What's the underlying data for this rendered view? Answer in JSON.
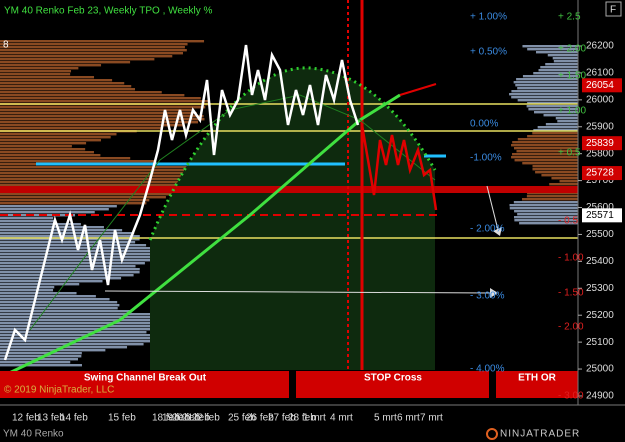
{
  "header": {
    "title": "YM 40 Renko Feb 23, Weekly TPO , Weekly %",
    "panel_number": "8",
    "button": "F"
  },
  "price_axis": [
    26200,
    26100,
    26000,
    25900,
    25800,
    25700,
    25600,
    25500,
    25400,
    25300,
    25200,
    25100,
    25000,
    24900
  ],
  "price_tags": [
    {
      "value": 26054,
      "style": "red"
    },
    {
      "value": 25839,
      "style": "red"
    },
    {
      "value": 25728,
      "style": "red"
    },
    {
      "value": 25571,
      "style": "white"
    }
  ],
  "percent_labels": [
    "+ 1.00%",
    "+ 0.50%",
    "0.00%",
    "-1.00%",
    "- 2.00%",
    "- 3.00%",
    "- 4.00%"
  ],
  "axis_percent_labels": [
    "+ 2.5",
    "+ 2.00",
    "+ 1.50",
    "+ 1.00",
    "+ 0.5",
    "- 0.5",
    "- 1.00",
    "- 1.50",
    "- 2.00",
    "- 3.00"
  ],
  "dates": [
    "12 feb",
    "13 feb",
    "14 feb",
    "15 feb",
    "18 feb",
    "19 feb",
    "20 feb",
    "21 feb",
    "22 feb",
    "25 feb",
    "26 feb",
    "27 feb",
    "28 feb",
    "1 mrt",
    "4 mrt",
    "5 mrt",
    "6 mrt",
    "7 mrt"
  ],
  "banners": [
    "Swing Channel Break Out",
    "STOP Cross",
    "ETH OR"
  ],
  "footer": {
    "copyright": "© 2019 NinjaTrader, LLC",
    "instrument": "YM 40 Renko",
    "logo": "NINJATRADER"
  }
}
